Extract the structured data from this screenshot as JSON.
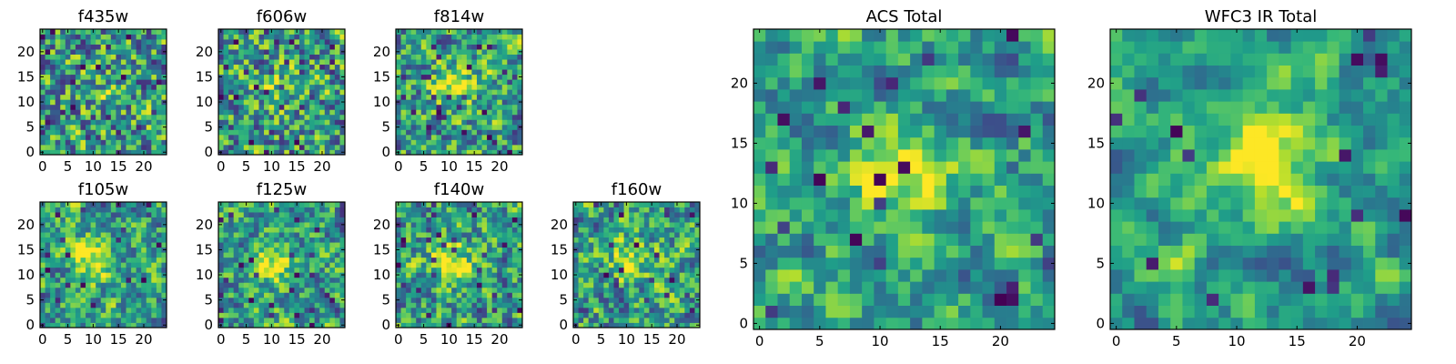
{
  "chart_data": [
    {
      "type": "heatmap",
      "title": "f435w",
      "xticks": [
        0,
        5,
        10,
        15,
        20
      ],
      "yticks": [
        0,
        5,
        10,
        15,
        20
      ],
      "xlim": [
        0,
        24
      ],
      "ylim": [
        0,
        24
      ],
      "grid": false,
      "colormap": "viridis",
      "seed": 11,
      "blob": [
        12,
        13
      ],
      "blob_strength": 0.1,
      "noise": 0.85,
      "dark_prob": 0.05
    },
    {
      "type": "heatmap",
      "title": "f606w",
      "xticks": [
        0,
        5,
        10,
        15,
        20
      ],
      "yticks": [
        0,
        5,
        10,
        15,
        20
      ],
      "xlim": [
        0,
        24
      ],
      "ylim": [
        0,
        24
      ],
      "grid": false,
      "colormap": "viridis",
      "seed": 23,
      "blob": [
        12,
        13
      ],
      "blob_strength": 0.18,
      "noise": 0.8,
      "dark_prob": 0.06
    },
    {
      "type": "heatmap",
      "title": "f814w",
      "xticks": [
        0,
        5,
        10,
        15,
        20
      ],
      "yticks": [
        0,
        5,
        10,
        15,
        20
      ],
      "xlim": [
        0,
        24
      ],
      "ylim": [
        0,
        24
      ],
      "grid": false,
      "colormap": "viridis",
      "seed": 37,
      "blob": [
        11,
        13
      ],
      "blob_strength": 0.35,
      "noise": 0.7,
      "dark_prob": 0.05
    },
    {
      "type": "heatmap",
      "title": "f105w",
      "xticks": [
        0,
        5,
        10,
        15,
        20
      ],
      "yticks": [
        0,
        5,
        10,
        15,
        20
      ],
      "xlim": [
        0,
        24
      ],
      "ylim": [
        0,
        24
      ],
      "grid": false,
      "colormap": "viridis",
      "seed": 41,
      "blob": [
        10,
        13
      ],
      "blob_strength": 0.4,
      "noise": 0.6,
      "dark_prob": 0.04
    },
    {
      "type": "heatmap",
      "title": "f125w",
      "xticks": [
        0,
        5,
        10,
        15,
        20
      ],
      "yticks": [
        0,
        5,
        10,
        15,
        20
      ],
      "xlim": [
        0,
        24
      ],
      "ylim": [
        0,
        24
      ],
      "grid": false,
      "colormap": "viridis",
      "seed": 53,
      "blob": [
        10,
        12
      ],
      "blob_strength": 0.35,
      "noise": 0.6,
      "dark_prob": 0.03
    },
    {
      "type": "heatmap",
      "title": "f140w",
      "xticks": [
        0,
        5,
        10,
        15,
        20
      ],
      "yticks": [
        0,
        5,
        10,
        15,
        20
      ],
      "xlim": [
        0,
        24
      ],
      "ylim": [
        0,
        24
      ],
      "grid": false,
      "colormap": "viridis",
      "seed": 67,
      "blob": [
        11,
        13
      ],
      "blob_strength": 0.35,
      "noise": 0.65,
      "dark_prob": 0.04
    },
    {
      "type": "heatmap",
      "title": "f160w",
      "xticks": [
        0,
        5,
        10,
        15,
        20
      ],
      "yticks": [
        0,
        5,
        10,
        15,
        20
      ],
      "xlim": [
        0,
        24
      ],
      "ylim": [
        0,
        24
      ],
      "grid": false,
      "colormap": "viridis",
      "seed": 79,
      "blob": [
        11,
        13
      ],
      "blob_strength": 0.35,
      "noise": 0.65,
      "dark_prob": 0.03
    },
    {
      "type": "heatmap",
      "title": "ACS Total",
      "xticks": [
        0,
        5,
        10,
        15,
        20
      ],
      "yticks": [
        0,
        5,
        10,
        15,
        20
      ],
      "xlim": [
        0,
        24
      ],
      "ylim": [
        0,
        24
      ],
      "grid": false,
      "colormap": "viridis",
      "seed": 97,
      "blob": [
        12,
        13
      ],
      "blob_strength": 0.45,
      "noise": 0.45,
      "dark_prob": 0.04
    },
    {
      "type": "heatmap",
      "title": "WFC3 IR Total",
      "xticks": [
        0,
        5,
        10,
        15,
        20
      ],
      "yticks": [
        0,
        5,
        10,
        15,
        20
      ],
      "xlim": [
        0,
        24
      ],
      "ylim": [
        0,
        24
      ],
      "grid": false,
      "colormap": "viridis",
      "seed": 131,
      "blob": [
        12,
        13
      ],
      "blob_strength": 0.55,
      "noise": 0.3,
      "dark_prob": 0.03
    }
  ]
}
